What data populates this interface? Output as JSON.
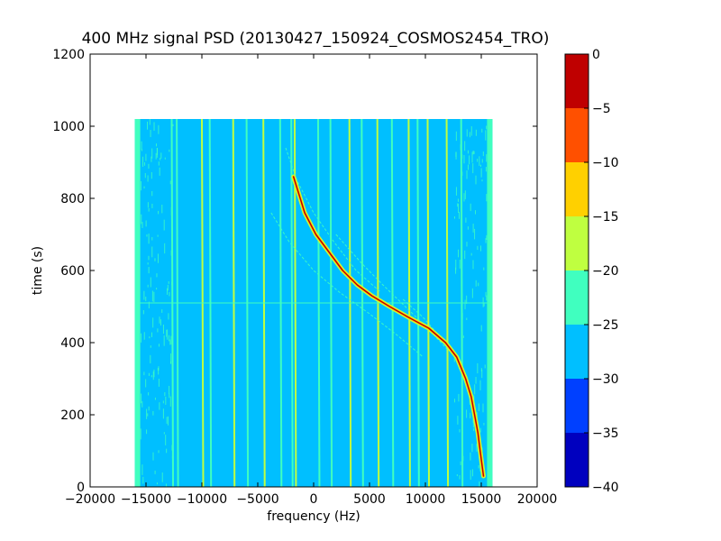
{
  "chart_data": {
    "type": "heatmap",
    "title": "400 MHz signal PSD (20130427_150924_COSMOS2454_TRO)",
    "xlabel": "frequency (Hz)",
    "ylabel": "time (s)",
    "xlim": [
      -20000,
      20000
    ],
    "ylim": [
      0,
      1200
    ],
    "xticks": [
      -20000,
      -15000,
      -10000,
      -5000,
      0,
      5000,
      10000,
      15000,
      20000
    ],
    "xtick_labels": [
      "−20000",
      "−15000",
      "−10000",
      "−5000",
      "0",
      "5000",
      "10000",
      "15000",
      "20000"
    ],
    "yticks": [
      0,
      200,
      400,
      600,
      800,
      1000,
      1200
    ],
    "ytick_labels": [
      "0",
      "200",
      "400",
      "600",
      "800",
      "1000",
      "1200"
    ],
    "data_extent": {
      "freq": [
        -16000,
        16000
      ],
      "time": [
        0,
        1020
      ]
    },
    "background_level": -27,
    "edge_band_level": -22,
    "horizontal_line": {
      "time": 510,
      "level": -22
    },
    "vertical_lines": [
      {
        "freq": -12700,
        "level": -22
      },
      {
        "freq": -12250,
        "level": -22
      },
      {
        "freq": -10000,
        "level": -17
      },
      {
        "freq": -9300,
        "level": -22
      },
      {
        "freq": -7200,
        "level": -17
      },
      {
        "freq": -6000,
        "level": -22
      },
      {
        "freq": -4500,
        "level": -17
      },
      {
        "freq": -3000,
        "level": -22
      },
      {
        "freq": -2000,
        "level": -22
      },
      {
        "freq": -1700,
        "level": -17
      },
      {
        "freq": 400,
        "level": -22
      },
      {
        "freq": 1500,
        "level": -22
      },
      {
        "freq": 3200,
        "level": -17
      },
      {
        "freq": 4300,
        "level": -22
      },
      {
        "freq": 5700,
        "level": -17
      },
      {
        "freq": 7000,
        "level": -22
      },
      {
        "freq": 8500,
        "level": -17
      },
      {
        "freq": 9300,
        "level": -22
      },
      {
        "freq": 10200,
        "level": -17
      },
      {
        "freq": 11900,
        "level": -17
      },
      {
        "freq": 13200,
        "level": -22
      }
    ],
    "main_signal": {
      "level": -3,
      "time": [
        860,
        820,
        760,
        700,
        650,
        600,
        560,
        530,
        500,
        470,
        440,
        400,
        360,
        300,
        250,
        200,
        150,
        100,
        30
      ],
      "freq": [
        -1800,
        -1400,
        -800,
        200,
        1400,
        2600,
        3900,
        5200,
        6800,
        8500,
        10300,
        11800,
        12800,
        13600,
        14100,
        14400,
        14700,
        14900,
        15200
      ]
    },
    "faint_traces": [
      {
        "level": -22,
        "time": [
          940,
          850,
          760,
          680,
          600,
          540
        ],
        "freq": [
          -2500,
          -1500,
          0,
          1800,
          3800,
          6000
        ]
      },
      {
        "level": -22,
        "time": [
          760,
          680,
          600,
          540,
          480,
          420,
          360
        ],
        "freq": [
          -3800,
          -2200,
          0,
          2300,
          5000,
          7500,
          9800
        ]
      },
      {
        "level": -22,
        "time": [
          700,
          620,
          560,
          500,
          440,
          380
        ],
        "freq": [
          2000,
          4300,
          6200,
          8200,
          10200,
          12000
        ]
      },
      {
        "level": -22,
        "time": [
          520,
          470,
          420,
          380,
          340,
          300
        ],
        "freq": [
          8000,
          9800,
          11200,
          12300,
          13100,
          13800
        ]
      }
    ],
    "colorbar": {
      "levels": [
        -40,
        -35,
        -30,
        -25,
        -20,
        -15,
        -10,
        -5,
        0
      ],
      "tick_labels": [
        "−40",
        "−35",
        "−30",
        "−25",
        "−20",
        "−15",
        "−10",
        "−5",
        "0"
      ],
      "colors": [
        "#0000bf",
        "#0040ff",
        "#00bfff",
        "#40ffbf",
        "#bfff40",
        "#ffd000",
        "#ff5000",
        "#bf0000"
      ]
    }
  }
}
